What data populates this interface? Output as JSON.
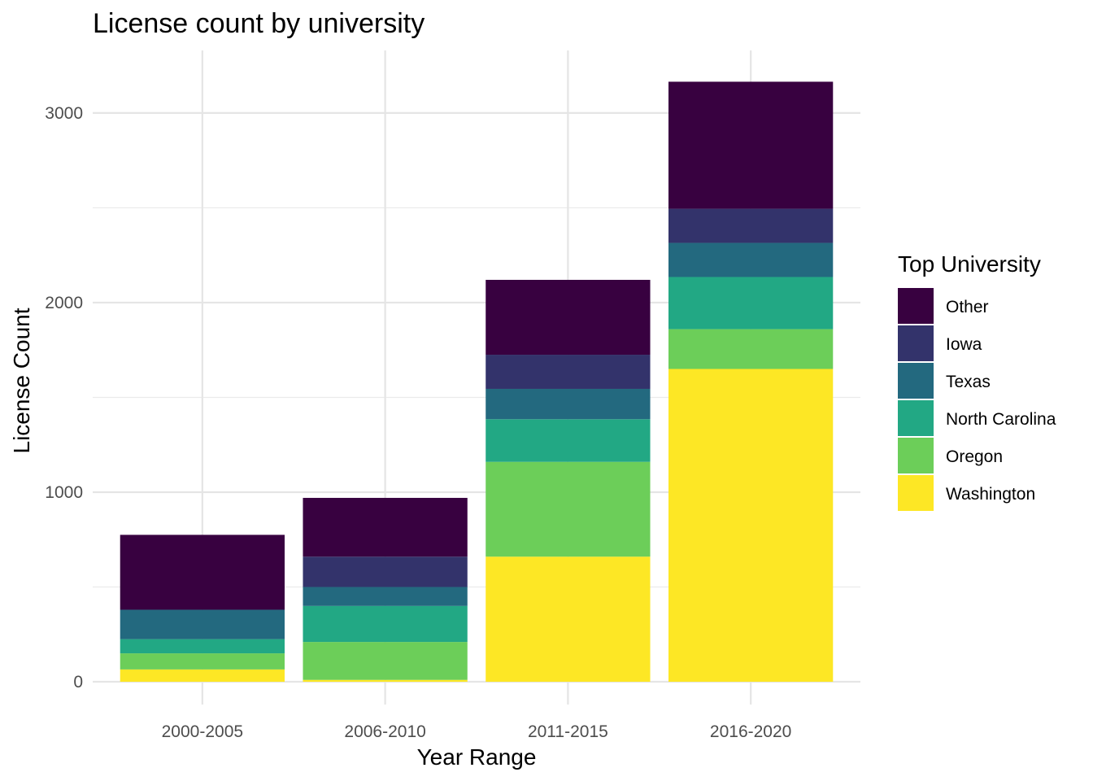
{
  "chart_data": {
    "type": "bar",
    "stacked": true,
    "title": "License count by university",
    "xlabel": "Year Range",
    "ylabel": "License Count",
    "categories": [
      "2000-2005",
      "2006-2010",
      "2011-2015",
      "2016-2020"
    ],
    "ylim": [
      -120,
      3330
    ],
    "yticks": [
      0,
      1000,
      2000,
      3000
    ],
    "grid": true,
    "legend": {
      "title": "Top University",
      "position": "right"
    },
    "series": [
      {
        "name": "Washington",
        "color": "#FDE725",
        "values": [
          65,
          10,
          660,
          1650
        ]
      },
      {
        "name": "Oregon",
        "color": "#6CCE59",
        "values": [
          85,
          200,
          500,
          210
        ]
      },
      {
        "name": "North Carolina",
        "color": "#22A884",
        "values": [
          75,
          190,
          225,
          275
        ]
      },
      {
        "name": "Texas",
        "color": "#23697F",
        "values": [
          155,
          100,
          160,
          180
        ]
      },
      {
        "name": "Iowa",
        "color": "#33336B",
        "values": [
          0,
          160,
          180,
          180
        ]
      },
      {
        "name": "Other",
        "color": "#380140",
        "values": [
          395,
          310,
          395,
          670
        ]
      }
    ],
    "legend_order": [
      "Other",
      "Iowa",
      "Texas",
      "North Carolina",
      "Oregon",
      "Washington"
    ]
  }
}
